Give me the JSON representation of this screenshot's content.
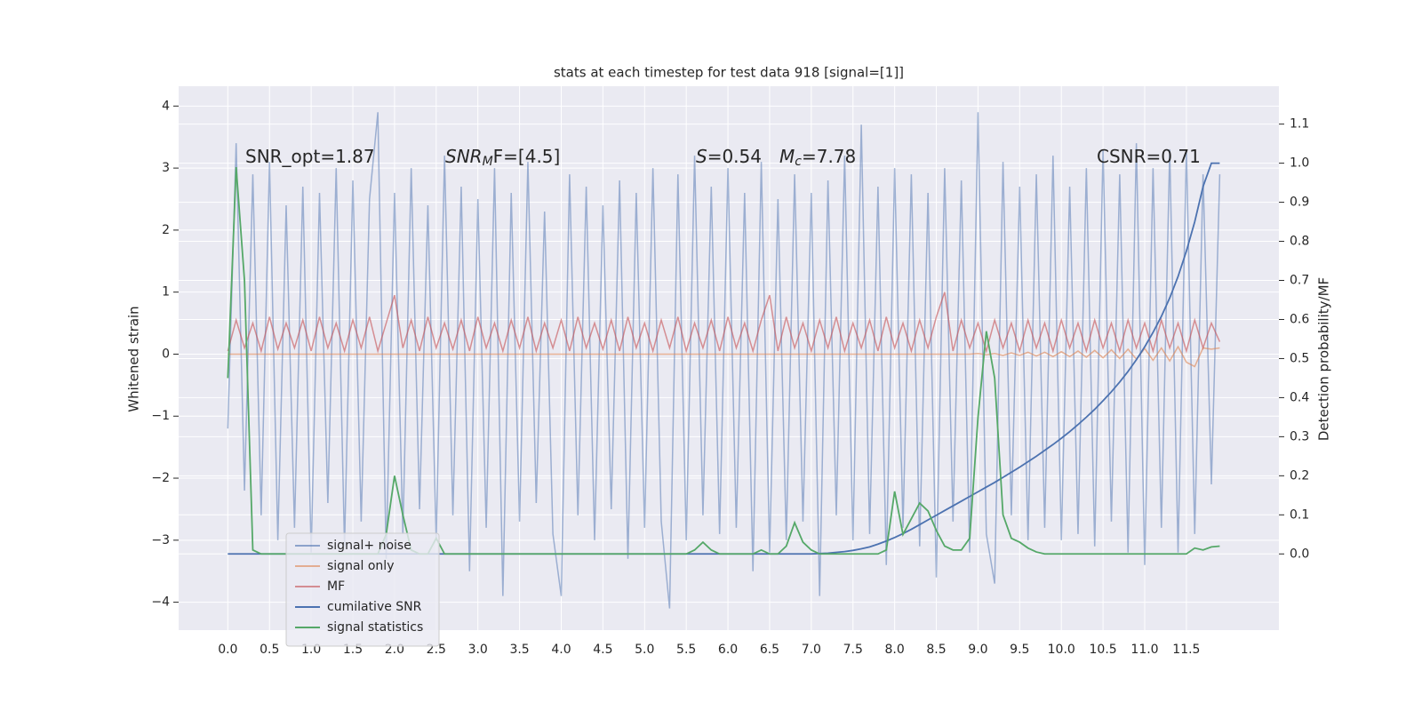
{
  "chart_data": {
    "type": "line",
    "title": "stats at each timestep for test data 918 [signal=[1]]",
    "y_label": "Whitened strain",
    "y2_label": "Detection probability/MF",
    "annotations": [
      [
        "SNR_opt=1.87"
      ],
      [
        "SNR",
        "M",
        "F=[4.5]"
      ],
      [
        "S",
        "=0.54"
      ],
      [
        "M",
        "c",
        "=7.78"
      ],
      [
        "CSNR=0.71"
      ]
    ],
    "xlim": [
      -0.59,
      12.61
    ],
    "xticks": [
      {
        "value": 0.0,
        "label": "0.0"
      },
      0.5,
      {
        "value": 1.0,
        "label": "1.0"
      },
      1.5,
      {
        "value": 2.0,
        "label": "2.0"
      },
      2.5,
      {
        "value": 3.0,
        "label": "3.0"
      },
      3.5,
      {
        "value": 4.0,
        "label": "4.0"
      },
      4.5,
      {
        "value": 5.0,
        "label": "5.0"
      },
      5.5,
      {
        "value": 6.0,
        "label": "6.0"
      },
      6.5,
      {
        "value": 7.0,
        "label": "7.0"
      },
      7.5,
      {
        "value": 8.0,
        "label": "8.0"
      },
      8.5,
      {
        "value": 9.0,
        "label": "9.0"
      },
      9.5,
      {
        "value": 10.0,
        "label": "10.0"
      },
      10.5,
      {
        "value": 11.0,
        "label": "11.0"
      },
      11.5
    ],
    "ylim": [
      -4.45,
      4.32
    ],
    "yticks": [
      {
        "value": -4,
        "label": "−4"
      },
      {
        "value": -3,
        "label": "−3"
      },
      {
        "value": -2,
        "label": "−2"
      },
      {
        "value": -1,
        "label": "−1"
      },
      0,
      1,
      2,
      3,
      4
    ],
    "y2lim": [
      -0.195,
      1.197
    ],
    "y2ticks": [
      {
        "value": 0.0,
        "label": "0.0"
      },
      0.1,
      0.2,
      0.3,
      0.4,
      0.5,
      0.6,
      0.7,
      0.8,
      0.9,
      {
        "value": 1.0,
        "label": "1.0"
      },
      1.1
    ],
    "grid": true,
    "legend": "lower left",
    "x": [
      0.0,
      0.1,
      0.2,
      0.3,
      0.4,
      0.5,
      0.6,
      0.7,
      0.8,
      0.9,
      1.0,
      1.1,
      1.2,
      1.3,
      1.4,
      1.5,
      1.6,
      1.7,
      1.8,
      1.9,
      2.0,
      2.1,
      2.2,
      2.3,
      2.4,
      2.5,
      2.6,
      2.7,
      2.8,
      2.9,
      3.0,
      3.1,
      3.2,
      3.3,
      3.4,
      3.5,
      3.6,
      3.7,
      3.8,
      3.9,
      4.0,
      4.1,
      4.2,
      4.3,
      4.4,
      4.5,
      4.6,
      4.7,
      4.8,
      4.9,
      5.0,
      5.1,
      5.2,
      5.3,
      5.4,
      5.5,
      5.6,
      5.7,
      5.8,
      5.9,
      6.0,
      6.1,
      6.2,
      6.3,
      6.4,
      6.5,
      6.6,
      6.7,
      6.8,
      6.9,
      7.0,
      7.1,
      7.2,
      7.3,
      7.4,
      7.5,
      7.6,
      7.7,
      7.8,
      7.9,
      8.0,
      8.1,
      8.2,
      8.3,
      8.4,
      8.5,
      8.6,
      8.7,
      8.8,
      8.9,
      9.0,
      9.1,
      9.2,
      9.3,
      9.4,
      9.5,
      9.6,
      9.7,
      9.8,
      9.9,
      10.0,
      10.1,
      10.2,
      10.3,
      10.4,
      10.5,
      10.6,
      10.7,
      10.8,
      10.9,
      11.0,
      11.1,
      11.2,
      11.3,
      11.4,
      11.5,
      11.6,
      11.7,
      11.8,
      11.9
    ],
    "series": [
      {
        "name": "signal+ noise",
        "color": "#4c72b0",
        "values": [
          -1.2,
          3.4,
          -2.2,
          2.9,
          -2.6,
          3.1,
          -3.0,
          2.4,
          -2.8,
          2.7,
          -3.2,
          2.6,
          -2.4,
          3.0,
          -3.1,
          2.8,
          -2.7,
          2.5,
          3.9,
          -3.3,
          2.6,
          -2.9,
          3.0,
          -2.5,
          2.4,
          -3.0,
          3.2,
          -2.6,
          2.7,
          -3.5,
          2.5,
          -2.8,
          3.0,
          -3.9,
          2.6,
          -2.7,
          3.1,
          -2.4,
          2.3,
          -2.9,
          -3.9,
          2.9,
          -2.6,
          2.7,
          -3.0,
          2.4,
          -2.5,
          2.8,
          -3.3,
          2.6,
          -2.8,
          3.0,
          -2.7,
          -4.1,
          2.9,
          -3.0,
          3.2,
          -2.6,
          2.7,
          -2.9,
          3.0,
          -2.8,
          2.6,
          -3.5,
          3.1,
          -3.2,
          2.5,
          -3.0,
          2.9,
          -2.7,
          2.6,
          -3.9,
          2.8,
          -2.6,
          3.2,
          -3.0,
          3.7,
          -2.9,
          2.7,
          -3.4,
          3.0,
          -2.8,
          2.9,
          -3.1,
          2.6,
          -3.6,
          3.0,
          -2.7,
          2.8,
          -3.2,
          3.9,
          -2.9,
          -3.7,
          3.1,
          -2.6,
          2.7,
          -3.0,
          2.9,
          -2.8,
          3.2,
          -3.0,
          2.7,
          -2.9,
          3.0,
          -3.1,
          3.3,
          -2.7,
          2.9,
          -3.2,
          3.4,
          -3.4,
          3.0,
          -2.8,
          3.3,
          -3.2,
          3.3,
          -2.9,
          2.9,
          -2.1,
          2.9
        ]
      },
      {
        "name": "signal only",
        "color": "#dd8452",
        "values": [
          0,
          0,
          0,
          0,
          0,
          0,
          0,
          0,
          0,
          0,
          0,
          0,
          0,
          0,
          0,
          0,
          0,
          0,
          0,
          0,
          0,
          0,
          0,
          0,
          0,
          0,
          0,
          0,
          0,
          0,
          0,
          0,
          0,
          0,
          0,
          0,
          0,
          0,
          0,
          0,
          0,
          0,
          0,
          0,
          0,
          0,
          0,
          0,
          0,
          0,
          0,
          0,
          0,
          0,
          0,
          0,
          0,
          0,
          0,
          0,
          0,
          0,
          0,
          0,
          0,
          0,
          0,
          0,
          0,
          0,
          0,
          0,
          0,
          0,
          0,
          0,
          0,
          0,
          0,
          0,
          0,
          0,
          0,
          0,
          0,
          0,
          0,
          0,
          0,
          0,
          0.01,
          -0.01,
          0.01,
          -0.02,
          0.02,
          -0.02,
          0.03,
          -0.03,
          0.03,
          -0.04,
          0.04,
          -0.04,
          0.05,
          -0.05,
          0.06,
          -0.06,
          0.07,
          -0.07,
          0.08,
          -0.08,
          0.09,
          -0.1,
          0.1,
          -0.11,
          0.12,
          -0.13,
          -0.2,
          0.1,
          0.08,
          0.1
        ]
      },
      {
        "name": "MF",
        "color": "#c44e52",
        "values": [
          0.05,
          0.55,
          0.1,
          0.5,
          0.05,
          0.6,
          0.08,
          0.5,
          0.1,
          0.55,
          0.05,
          0.6,
          0.1,
          0.5,
          0.05,
          0.55,
          0.1,
          0.6,
          0.05,
          0.5,
          0.95,
          0.1,
          0.55,
          0.05,
          0.6,
          0.1,
          0.5,
          0.08,
          0.55,
          0.05,
          0.6,
          0.1,
          0.5,
          0.05,
          0.55,
          0.1,
          0.6,
          0.05,
          0.5,
          0.1,
          0.55,
          0.05,
          0.6,
          0.1,
          0.5,
          0.08,
          0.55,
          0.05,
          0.6,
          0.1,
          0.5,
          0.05,
          0.55,
          0.1,
          0.6,
          0.05,
          0.5,
          0.1,
          0.55,
          0.05,
          0.6,
          0.1,
          0.5,
          0.05,
          0.55,
          0.95,
          0.05,
          0.6,
          0.1,
          0.5,
          0.05,
          0.55,
          0.1,
          0.6,
          0.05,
          0.5,
          0.1,
          0.55,
          0.05,
          0.6,
          0.1,
          0.5,
          0.05,
          0.55,
          0.1,
          0.6,
          1.0,
          0.05,
          0.55,
          0.1,
          0.5,
          0.05,
          0.55,
          0.1,
          0.5,
          0.05,
          0.55,
          0.1,
          0.5,
          0.05,
          0.55,
          0.1,
          0.5,
          0.05,
          0.55,
          0.1,
          0.5,
          0.05,
          0.55,
          0.1,
          0.5,
          0.05,
          0.55,
          0.1,
          0.5,
          0.05,
          0.55,
          0.1,
          0.5,
          0.2
        ]
      },
      {
        "name": "cumilative SNR",
        "color": "#4c72b0",
        "axis": "y2",
        "values": [
          0,
          0,
          0,
          0,
          0,
          0,
          0,
          0,
          0,
          0,
          0,
          0,
          0,
          0,
          0,
          0,
          0,
          0,
          0,
          0,
          0,
          0,
          0,
          0,
          0,
          0,
          0,
          0,
          0,
          0,
          0,
          0,
          0,
          0,
          0,
          0,
          0,
          0,
          0,
          0,
          0,
          0,
          0,
          0,
          0,
          0,
          0,
          0,
          0,
          0,
          0,
          0,
          0,
          0,
          0,
          0,
          0,
          0,
          0,
          0,
          0,
          0,
          0,
          0,
          0,
          0,
          0,
          0,
          0,
          0,
          0,
          0.001,
          0.002,
          0.004,
          0.006,
          0.009,
          0.013,
          0.018,
          0.025,
          0.033,
          0.042,
          0.052,
          0.063,
          0.075,
          0.087,
          0.099,
          0.111,
          0.123,
          0.135,
          0.147,
          0.159,
          0.171,
          0.183,
          0.196,
          0.209,
          0.222,
          0.236,
          0.25,
          0.265,
          0.28,
          0.296,
          0.313,
          0.331,
          0.35,
          0.37,
          0.392,
          0.415,
          0.44,
          0.467,
          0.497,
          0.53,
          0.567,
          0.608,
          0.655,
          0.71,
          0.775,
          0.85,
          0.94,
          1.0,
          1.0
        ]
      },
      {
        "name": "signal statistics",
        "color": "#55a868",
        "axis": "y2",
        "values": [
          0.45,
          0.99,
          0.7,
          0.01,
          0,
          0,
          0,
          0,
          0,
          0,
          0,
          0,
          0,
          0,
          0,
          0,
          0,
          0,
          0,
          0.05,
          0.2,
          0.1,
          0.01,
          0,
          0,
          0.04,
          0,
          0,
          0,
          0,
          0,
          0,
          0,
          0,
          0,
          0,
          0,
          0,
          0,
          0,
          0,
          0,
          0,
          0,
          0,
          0,
          0,
          0,
          0,
          0,
          0,
          0,
          0,
          0,
          0,
          0,
          0.01,
          0.03,
          0.01,
          0,
          0,
          0,
          0,
          0,
          0.01,
          0,
          0,
          0.02,
          0.08,
          0.03,
          0.01,
          0,
          0,
          0,
          0,
          0,
          0,
          0,
          0,
          0.01,
          0.16,
          0.05,
          0.09,
          0.13,
          0.11,
          0.06,
          0.02,
          0.01,
          0.01,
          0.04,
          0.35,
          0.57,
          0.45,
          0.1,
          0.04,
          0.03,
          0.015,
          0.005,
          0,
          0,
          0,
          0,
          0,
          0,
          0,
          0,
          0,
          0,
          0,
          0,
          0,
          0,
          0,
          0,
          0,
          0,
          0.015,
          0.01,
          0.018,
          0.02
        ]
      }
    ]
  }
}
